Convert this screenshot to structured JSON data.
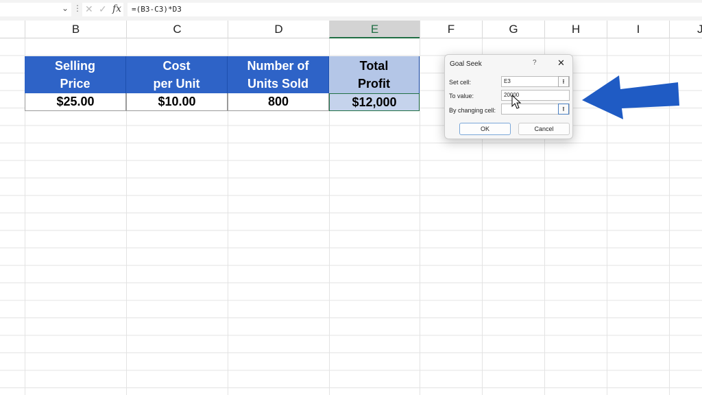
{
  "formula_bar": {
    "formula": "=(B3-C3)*D3",
    "fx": "fx",
    "cancel": "✕",
    "enter": "✓"
  },
  "columns": [
    "B",
    "C",
    "D",
    "E",
    "F",
    "G",
    "H",
    "I",
    "J"
  ],
  "selected_column": "E",
  "table": {
    "headers": [
      [
        "Selling",
        "Price"
      ],
      [
        "Cost",
        "per Unit"
      ],
      [
        "Number of",
        "Units Sold"
      ],
      [
        "Total",
        "Profit"
      ]
    ],
    "values": [
      "$25.00",
      "$10.00",
      "800",
      "$12,000"
    ]
  },
  "dialog": {
    "title": "Goal Seek",
    "help": "?",
    "close": "✕",
    "set_cell_label": "Set cell:",
    "set_cell_value": "E3",
    "to_value_label": "To value:",
    "to_value_value": "20000",
    "changing_cell_label": "By changing cell:",
    "changing_cell_value": "",
    "ok": "OK",
    "cancel": "Cancel"
  },
  "colors": {
    "header_blue": "#2e63c7",
    "selected_header": "#b4c6e7",
    "arrow": "#1f5bc4"
  }
}
